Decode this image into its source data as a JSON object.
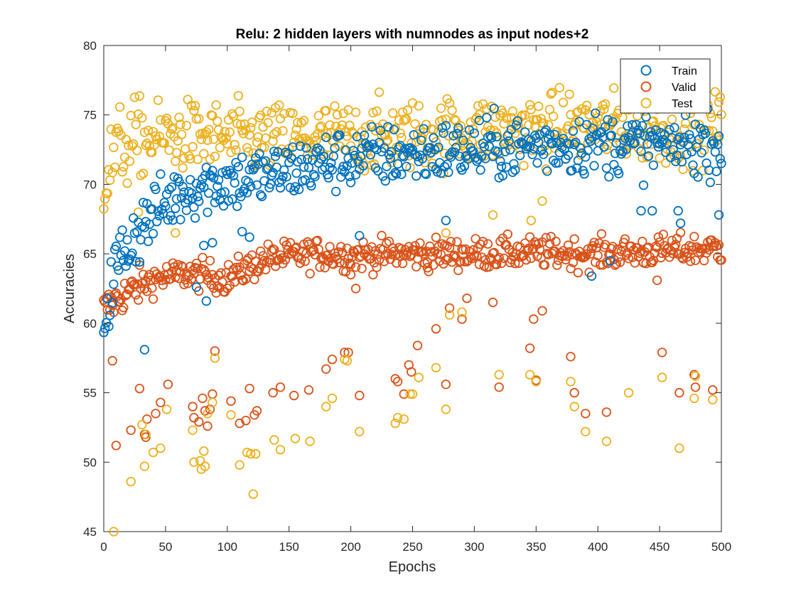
{
  "chart_data": {
    "type": "scatter",
    "title": "Relu: 2 hidden layers with numnodes as input nodes+2",
    "xlabel": "Epochs",
    "ylabel": "Accuracies",
    "xlim": [
      0,
      500
    ],
    "ylim": [
      45,
      80
    ],
    "xticks": [
      0,
      50,
      100,
      150,
      200,
      250,
      300,
      350,
      400,
      450,
      500
    ],
    "yticks": [
      45,
      50,
      55,
      60,
      65,
      70,
      75,
      80
    ],
    "grid": false,
    "legend_position": "top-right",
    "series": [
      {
        "name": "Train",
        "color": "#0072BD",
        "marker": "circle-open",
        "trend": [
          [
            0,
            60.5
          ],
          [
            10,
            64.0
          ],
          [
            20,
            65.8
          ],
          [
            30,
            67.0
          ],
          [
            45,
            68.2
          ],
          [
            60,
            69.3
          ],
          [
            80,
            70.0
          ],
          [
            100,
            70.2
          ],
          [
            130,
            70.6
          ],
          [
            160,
            71.2
          ],
          [
            200,
            71.9
          ],
          [
            250,
            72.2
          ],
          [
            300,
            72.5
          ],
          [
            350,
            72.8
          ],
          [
            400,
            73.0
          ],
          [
            450,
            72.8
          ],
          [
            500,
            73.0
          ]
        ],
        "spread": 1.1,
        "outliers": [
          [
            33,
            58.1
          ],
          [
            75,
            62.6
          ],
          [
            83,
            61.6
          ],
          [
            88,
            65.8
          ],
          [
            81,
            65.6
          ],
          [
            112,
            66.6
          ],
          [
            118,
            66.2
          ],
          [
            207,
            66.3
          ],
          [
            277,
            67.4
          ],
          [
            395,
            63.4
          ],
          [
            410,
            64.5
          ],
          [
            465,
            68.1
          ],
          [
            467,
            67.2
          ],
          [
            498,
            67.8
          ],
          [
            435,
            68.1
          ],
          [
            444,
            68.1
          ]
        ]
      },
      {
        "name": "Valid",
        "color": "#D95319",
        "marker": "circle-open",
        "trend": [
          [
            0,
            61.0
          ],
          [
            15,
            62.0
          ],
          [
            40,
            63.2
          ],
          [
            70,
            63.6
          ],
          [
            100,
            63.2
          ],
          [
            130,
            64.6
          ],
          [
            170,
            65.0
          ],
          [
            200,
            64.9
          ],
          [
            250,
            65.0
          ],
          [
            300,
            65.0
          ],
          [
            350,
            65.1
          ],
          [
            400,
            65.0
          ],
          [
            450,
            65.2
          ],
          [
            500,
            65.4
          ]
        ],
        "spread": 0.55,
        "outliers": [
          [
            7,
            57.3
          ],
          [
            10,
            51.2
          ],
          [
            22,
            52.3
          ],
          [
            29,
            55.3
          ],
          [
            33,
            52.0
          ],
          [
            34,
            51.8
          ],
          [
            35,
            53.1
          ],
          [
            42,
            53.5
          ],
          [
            46,
            54.3
          ],
          [
            52,
            55.6
          ],
          [
            72,
            54.0
          ],
          [
            73,
            53.2
          ],
          [
            77,
            52.9
          ],
          [
            80,
            54.6
          ],
          [
            82,
            53.7
          ],
          [
            84,
            52.6
          ],
          [
            86,
            53.8
          ],
          [
            88,
            54.9
          ],
          [
            90,
            58.0
          ],
          [
            103,
            54.4
          ],
          [
            110,
            52.8
          ],
          [
            115,
            53.0
          ],
          [
            118,
            55.3
          ],
          [
            122,
            53.4
          ],
          [
            124,
            53.7
          ],
          [
            137,
            55.0
          ],
          [
            143,
            55.4
          ],
          [
            154,
            54.8
          ],
          [
            166,
            55.2
          ],
          [
            180,
            56.7
          ],
          [
            185,
            57.4
          ],
          [
            195,
            57.9
          ],
          [
            198,
            57.9
          ],
          [
            207,
            54.8
          ],
          [
            236,
            56.0
          ],
          [
            238,
            55.8
          ],
          [
            243,
            54.9
          ],
          [
            247,
            57.0
          ],
          [
            249,
            56.5
          ],
          [
            254,
            58.4
          ],
          [
            269,
            59.6
          ],
          [
            277,
            55.6
          ],
          [
            280,
            61.1
          ],
          [
            290,
            60.3
          ],
          [
            294,
            61.8
          ],
          [
            315,
            61.5
          ],
          [
            320,
            55.4
          ],
          [
            345,
            58.2
          ],
          [
            348,
            60.3
          ],
          [
            350,
            55.9
          ],
          [
            355,
            60.9
          ],
          [
            378,
            57.6
          ],
          [
            381,
            55.0
          ],
          [
            390,
            53.5
          ],
          [
            407,
            53.6
          ],
          [
            452,
            57.9
          ],
          [
            466,
            55.0
          ],
          [
            478,
            56.3
          ],
          [
            479,
            55.4
          ],
          [
            493,
            55.2
          ],
          [
            204,
            62.5
          ],
          [
            200,
            63.5
          ],
          [
            262,
            64.0
          ],
          [
            448,
            63.1
          ]
        ]
      },
      {
        "name": "Test",
        "color": "#EDB120",
        "marker": "circle-open",
        "trend": [
          [
            0,
            70.0
          ],
          [
            10,
            72.5
          ],
          [
            30,
            73.2
          ],
          [
            60,
            73.5
          ],
          [
            100,
            73.3
          ],
          [
            150,
            73.2
          ],
          [
            200,
            73.4
          ],
          [
            250,
            73.6
          ],
          [
            300,
            73.8
          ],
          [
            350,
            74.0
          ],
          [
            400,
            74.2
          ],
          [
            450,
            74.0
          ],
          [
            500,
            74.2
          ]
        ],
        "spread": 1.25,
        "outliers": [
          [
            8,
            45.0
          ],
          [
            22,
            48.6
          ],
          [
            31,
            52.7
          ],
          [
            33,
            49.7
          ],
          [
            34,
            52.0
          ],
          [
            40,
            50.7
          ],
          [
            46,
            51.0
          ],
          [
            51,
            53.8
          ],
          [
            72,
            52.3
          ],
          [
            73,
            50.0
          ],
          [
            78,
            50.1
          ],
          [
            79,
            49.5
          ],
          [
            81,
            50.8
          ],
          [
            82,
            49.7
          ],
          [
            84,
            53.5
          ],
          [
            88,
            54.3
          ],
          [
            90,
            57.5
          ],
          [
            103,
            53.4
          ],
          [
            110,
            49.8
          ],
          [
            116,
            50.7
          ],
          [
            119,
            50.6
          ],
          [
            121,
            47.7
          ],
          [
            123,
            50.6
          ],
          [
            138,
            51.6
          ],
          [
            143,
            50.9
          ],
          [
            155,
            51.7
          ],
          [
            167,
            51.5
          ],
          [
            180,
            54.0
          ],
          [
            185,
            54.6
          ],
          [
            195,
            57.4
          ],
          [
            197,
            57.3
          ],
          [
            207,
            52.2
          ],
          [
            236,
            52.8
          ],
          [
            238,
            53.2
          ],
          [
            243,
            53.1
          ],
          [
            248,
            54.9
          ],
          [
            250,
            54.9
          ],
          [
            255,
            56.1
          ],
          [
            269,
            56.8
          ],
          [
            277,
            53.8
          ],
          [
            280,
            60.6
          ],
          [
            290,
            60.8
          ],
          [
            320,
            56.3
          ],
          [
            345,
            56.3
          ],
          [
            350,
            55.8
          ],
          [
            378,
            55.8
          ],
          [
            381,
            54.0
          ],
          [
            390,
            52.2
          ],
          [
            407,
            51.5
          ],
          [
            425,
            55.0
          ],
          [
            452,
            56.1
          ],
          [
            466,
            51.0
          ],
          [
            478,
            54.6
          ],
          [
            479,
            56.2
          ],
          [
            493,
            54.5
          ],
          [
            47,
            68.2
          ],
          [
            28,
            68.0
          ],
          [
            58,
            66.5
          ],
          [
            277,
            66.5
          ],
          [
            315,
            67.8
          ],
          [
            346,
            67.4
          ],
          [
            355,
            68.8
          ]
        ]
      }
    ]
  }
}
